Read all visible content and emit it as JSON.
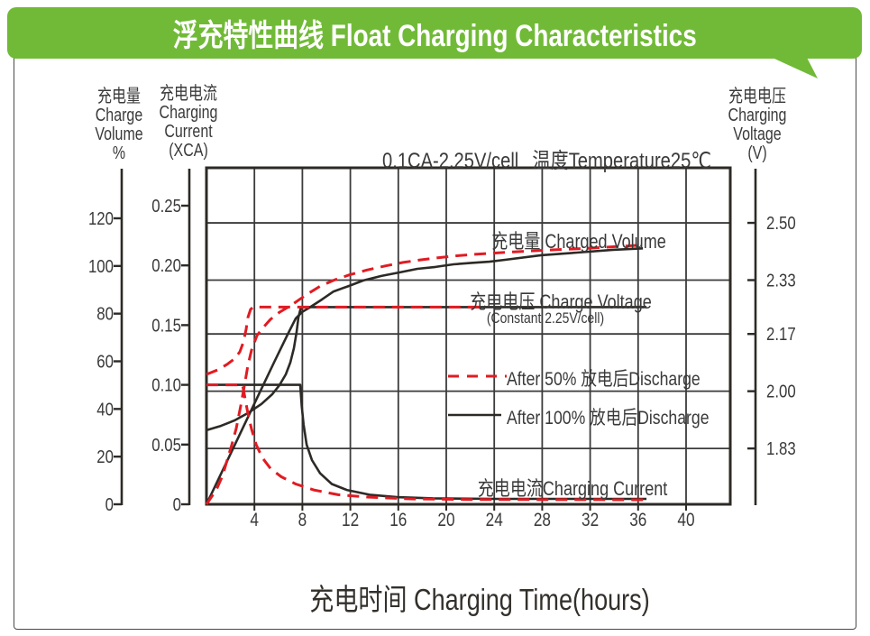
{
  "banner": {
    "title": "浮充特性曲线  Float Charging Characteristics",
    "color": "#71ba37"
  },
  "axes_headers": {
    "volume": [
      "充电量",
      "Charge",
      "Volume",
      "%"
    ],
    "current": [
      "充电电流",
      "Charging",
      "Current",
      "(XCA)"
    ],
    "voltage": [
      "充电电压",
      "Charging",
      "Voltage",
      "(V)"
    ]
  },
  "chart_data": {
    "type": "line",
    "condition_label": "0.1CA-2.25V/cell",
    "temperature_label": "温度Temperature25℃",
    "xlabel": "充电时间  Charging Time(hours)",
    "x_ticks": [
      4,
      8,
      12,
      16,
      20,
      24,
      28,
      32,
      36,
      40
    ],
    "x_range_hours": [
      0,
      43.7
    ],
    "grid": true,
    "axes": {
      "volume": {
        "ticks": [
          0,
          20,
          40,
          60,
          80,
          100,
          120
        ],
        "unit": "%"
      },
      "current": {
        "ticks": [
          0,
          0.05,
          0.1,
          0.15,
          0.2,
          0.25
        ],
        "unit": "XCA"
      },
      "voltage": {
        "ticks": [
          1.83,
          2.0,
          2.17,
          2.33,
          2.5
        ],
        "unit": "V"
      }
    },
    "annotations": {
      "charged_volume": "充电量 Charged Volume",
      "charge_voltage": "充电电压 Charge Voltage",
      "charge_voltage_sub": "(Constant 2.25V/cell)",
      "charging_current": "充电电流Charging Current"
    },
    "legend": [
      {
        "label": "After 50% 放电后Discharge",
        "style": "dashed",
        "color": "#e11b22"
      },
      {
        "label": "After 100% 放电后Discharge",
        "style": "solid",
        "color": "#2d2a26"
      }
    ],
    "series": [
      {
        "name": "charged-volume-after-100",
        "axis": "volume",
        "style": "solid",
        "color": "#2d2a26",
        "points": [
          [
            0,
            0
          ],
          [
            2,
            21.1
          ],
          [
            4,
            42.3
          ],
          [
            5.7,
            60.2
          ],
          [
            6.84,
            72
          ],
          [
            7.45,
            78
          ],
          [
            8,
            80.8
          ],
          [
            8.57,
            82.5
          ],
          [
            9.62,
            85.9
          ],
          [
            10.6,
            89.3
          ],
          [
            11.88,
            91.6
          ],
          [
            13.08,
            93.9
          ],
          [
            14.59,
            95.8
          ],
          [
            16.09,
            97.3
          ],
          [
            17.59,
            98.8
          ],
          [
            19.1,
            99.6
          ],
          [
            20.6,
            100.7
          ],
          [
            22.1,
            101.3
          ],
          [
            23.6,
            101.8
          ],
          [
            24.9,
            102.6
          ],
          [
            27.9,
            104.5
          ],
          [
            30.9,
            105.6
          ],
          [
            33.9,
            106.8
          ],
          [
            36.4,
            107.4
          ]
        ]
      },
      {
        "name": "charge-voltage-after-100",
        "axis": "voltage",
        "style": "solid",
        "color": "#2d2a26",
        "points": [
          [
            0,
            1.884
          ],
          [
            1.2,
            1.897
          ],
          [
            2.33,
            1.913
          ],
          [
            3.46,
            1.935
          ],
          [
            4.59,
            1.962
          ],
          [
            5.49,
            1.991
          ],
          [
            6.09,
            2.018
          ],
          [
            6.62,
            2.05
          ],
          [
            6.99,
            2.085
          ],
          [
            7.29,
            2.128
          ],
          [
            7.52,
            2.176
          ],
          [
            7.67,
            2.219
          ],
          [
            7.85,
            2.245
          ],
          [
            8.1,
            2.25
          ],
          [
            36.7,
            2.25
          ]
        ]
      },
      {
        "name": "charging-current-after-100",
        "axis": "current",
        "style": "solid",
        "color": "#2d2a26",
        "points": [
          [
            0,
            0.1
          ],
          [
            7.82,
            0.1
          ],
          [
            7.95,
            0.082
          ],
          [
            8.1,
            0.067
          ],
          [
            8.35,
            0.05
          ],
          [
            8.8,
            0.037
          ],
          [
            9.47,
            0.026
          ],
          [
            10.45,
            0.017
          ],
          [
            11.7,
            0.012
          ],
          [
            13.6,
            0.008
          ],
          [
            15.9,
            0.006
          ],
          [
            18.9,
            0.005
          ],
          [
            24.1,
            0.0045
          ],
          [
            36.7,
            0.0045
          ]
        ]
      },
      {
        "name": "charged-volume-after-50",
        "axis": "volume",
        "style": "dashed",
        "color": "#e11b22",
        "points": [
          [
            0,
            0
          ],
          [
            0.83,
            6.1
          ],
          [
            1.35,
            12.1
          ],
          [
            1.73,
            18.6
          ],
          [
            2.11,
            25
          ],
          [
            2.48,
            31.8
          ],
          [
            2.86,
            41.3
          ],
          [
            3.16,
            49.6
          ],
          [
            3.46,
            58.3
          ],
          [
            3.76,
            64.7
          ],
          [
            4.21,
            70.8
          ],
          [
            4.74,
            74.2
          ],
          [
            5.34,
            77.6
          ],
          [
            6.09,
            80.6
          ],
          [
            6.99,
            83.3
          ],
          [
            7.2,
            84
          ],
          [
            8.35,
            88
          ],
          [
            9.47,
            91.5
          ],
          [
            10.6,
            94
          ],
          [
            11.95,
            96.3
          ],
          [
            13.38,
            98.3
          ],
          [
            14.9,
            100
          ],
          [
            16.4,
            101.5
          ],
          [
            17.9,
            102.6
          ],
          [
            19.4,
            103.5
          ],
          [
            20.9,
            104.3
          ],
          [
            22.4,
            104.9
          ],
          [
            23.9,
            105.4
          ],
          [
            25.6,
            105.9
          ],
          [
            28.6,
            106.7
          ],
          [
            31.7,
            107.4
          ],
          [
            34.7,
            108.3
          ],
          [
            36.2,
            108.7
          ]
        ]
      },
      {
        "name": "charge-voltage-after-50",
        "axis": "voltage",
        "style": "dashed",
        "color": "#e11b22",
        "points": [
          [
            0,
            2.05
          ],
          [
            0.98,
            2.064
          ],
          [
            1.73,
            2.08
          ],
          [
            2.33,
            2.096
          ],
          [
            2.78,
            2.117
          ],
          [
            3.08,
            2.146
          ],
          [
            3.31,
            2.184
          ],
          [
            3.46,
            2.219
          ],
          [
            3.68,
            2.243
          ],
          [
            3.9,
            2.25
          ],
          [
            23,
            2.25
          ]
        ]
      },
      {
        "name": "charging-current-after-50",
        "axis": "current",
        "style": "dashed",
        "color": "#e11b22",
        "points": [
          [
            0,
            0.1
          ],
          [
            3.01,
            0.1
          ],
          [
            3.23,
            0.088
          ],
          [
            3.46,
            0.076
          ],
          [
            3.76,
            0.063
          ],
          [
            4.14,
            0.05
          ],
          [
            4.66,
            0.039
          ],
          [
            5.34,
            0.03
          ],
          [
            6.24,
            0.023
          ],
          [
            7.44,
            0.017
          ],
          [
            8.95,
            0.012
          ],
          [
            10.98,
            0.008
          ],
          [
            13.6,
            0.006
          ],
          [
            17,
            0.0045
          ],
          [
            21.9,
            0.004
          ],
          [
            36.5,
            0.0038
          ]
        ]
      }
    ]
  }
}
